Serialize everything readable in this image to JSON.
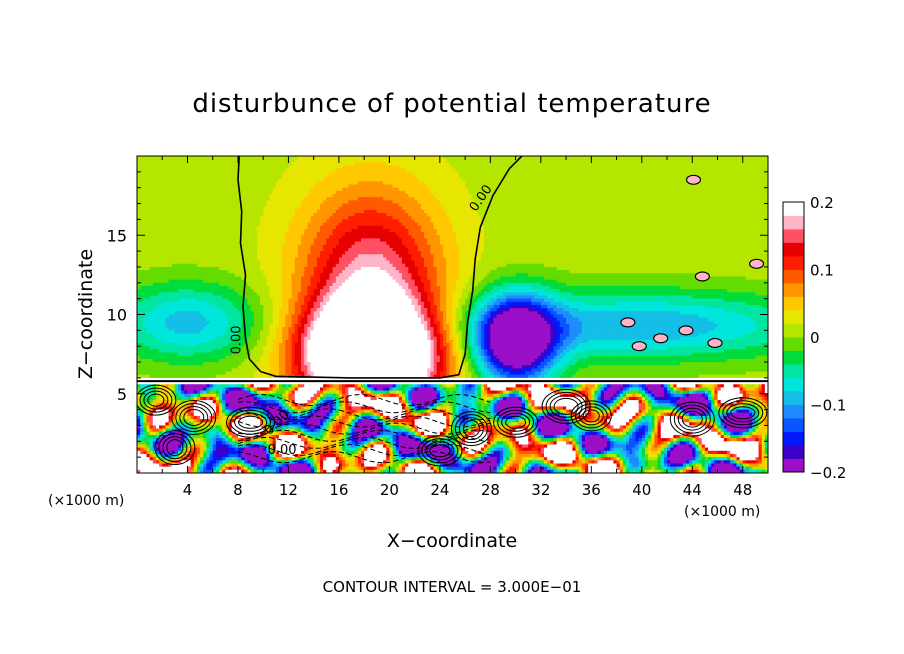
{
  "chart_data": {
    "type": "heatmap",
    "title": "disturbunce of potential temperature",
    "xlabel": "X−coordinate",
    "ylabel": "Z−coordinate",
    "x_unit_left": "(×1000 m)",
    "x_unit_right": "(×1000 m)",
    "footer": "CONTOUR INTERVAL = 3.000E−01",
    "xlim": [
      0,
      50
    ],
    "ylim": [
      0,
      20
    ],
    "x_ticks": [
      {
        "value": 4,
        "label": "4"
      },
      {
        "value": 8,
        "label": "8"
      },
      {
        "value": 12,
        "label": "12"
      },
      {
        "value": 16,
        "label": "16"
      },
      {
        "value": 20,
        "label": "20"
      },
      {
        "value": 24,
        "label": "24"
      },
      {
        "value": 28,
        "label": "28"
      },
      {
        "value": 32,
        "label": "32"
      },
      {
        "value": 36,
        "label": "36"
      },
      {
        "value": 40,
        "label": "40"
      },
      {
        "value": 44,
        "label": "44"
      },
      {
        "value": 48,
        "label": "48"
      }
    ],
    "y_ticks": [
      {
        "value": 5,
        "label": "5"
      },
      {
        "value": 10,
        "label": "10"
      },
      {
        "value": 15,
        "label": "15"
      }
    ],
    "colorbar": {
      "min": -0.2,
      "max": 0.2,
      "ticks": [
        {
          "value": 0.2,
          "label": "0.2"
        },
        {
          "value": 0.1,
          "label": "0.1"
        },
        {
          "value": 0,
          "label": "0"
        },
        {
          "value": -0.1,
          "label": "−0.1"
        },
        {
          "value": -0.2,
          "label": "−0.2"
        }
      ],
      "colors": [
        "#9b0fc8",
        "#3a00c8",
        "#0019ff",
        "#0a55ff",
        "#1e8cff",
        "#14bee6",
        "#00e6dc",
        "#00e6a0",
        "#00dc3c",
        "#64dc00",
        "#b4e600",
        "#e6e600",
        "#ffc800",
        "#ff9600",
        "#ff5a00",
        "#ff1e00",
        "#e60000",
        "#ff5064",
        "#ffb4c8",
        "#ffffff"
      ]
    },
    "contour_labels": [
      {
        "x": 27.5,
        "z": 17.2,
        "label": "0.00",
        "rotate": -55
      },
      {
        "x": 8.2,
        "z": 8.4,
        "label": "0.00",
        "rotate": -90
      },
      {
        "x": 11.5,
        "z": 1.2,
        "label": "0.00",
        "rotate": 0
      },
      {
        "x": 11.3,
        "z": 3.0,
        "label": "0.00",
        "rotate": -45
      }
    ],
    "fields": [
      {
        "sign": 1,
        "amp": 0.36,
        "cx": 18.5,
        "cz": 7.4,
        "sx": 5.2,
        "sz": 3.3
      },
      {
        "sign": 1,
        "amp": 0.15,
        "cx": 18.5,
        "cz": 12.5,
        "sx": 5.5,
        "sz": 5.5
      },
      {
        "sign": -1,
        "amp": 0.25,
        "cx": 30,
        "cz": 8.3,
        "sx": 3.2,
        "sz": 2.8
      },
      {
        "sign": -1,
        "amp": 0.11,
        "cx": 40,
        "cz": 9.3,
        "sx": 14,
        "sz": 2.2
      },
      {
        "sign": -1,
        "amp": 0.1,
        "cx": 4,
        "cz": 9.5,
        "sx": 6,
        "sz": 2.5
      }
    ]
  }
}
